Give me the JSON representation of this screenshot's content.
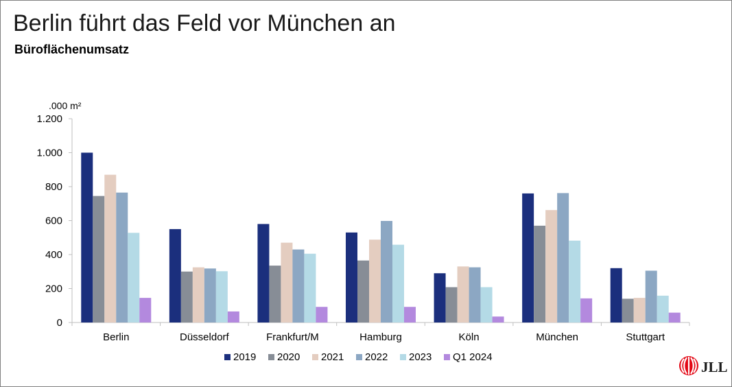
{
  "title": "Berlin führt das Feld vor München an",
  "subtitle": "Büroflächenumsatz",
  "chart_data": {
    "type": "bar",
    "unit_label": ".000 m²",
    "categories": [
      "Berlin",
      "Düsseldorf",
      "Frankfurt/M",
      "Hamburg",
      "Köln",
      "München",
      "Stuttgart"
    ],
    "series": [
      {
        "name": "2019",
        "color": "#1b2f7d",
        "values": [
          1000,
          550,
          580,
          530,
          290,
          760,
          320
        ]
      },
      {
        "name": "2020",
        "color": "#878d96",
        "values": [
          745,
          300,
          335,
          365,
          208,
          570,
          140
        ]
      },
      {
        "name": "2021",
        "color": "#e4cdc0",
        "values": [
          870,
          325,
          470,
          488,
          330,
          662,
          145
        ]
      },
      {
        "name": "2022",
        "color": "#8ca7c3",
        "values": [
          765,
          318,
          430,
          598,
          325,
          762,
          305
        ]
      },
      {
        "name": "2023",
        "color": "#b4dae6",
        "values": [
          528,
          302,
          405,
          458,
          208,
          482,
          158
        ]
      },
      {
        "name": "Q1 2024",
        "color": "#b389de",
        "values": [
          145,
          65,
          92,
          92,
          35,
          142,
          58
        ]
      }
    ],
    "ylim": [
      0,
      1200
    ],
    "yticks": [
      0,
      200,
      400,
      600,
      800,
      1000,
      1200
    ],
    "ytick_labels": [
      "0",
      "200",
      "400",
      "600",
      "800",
      "1.000",
      "1.200"
    ],
    "legend_position": "bottom",
    "grid": false
  },
  "logo": {
    "text": "JLL",
    "name": "jll-logo-icon"
  }
}
